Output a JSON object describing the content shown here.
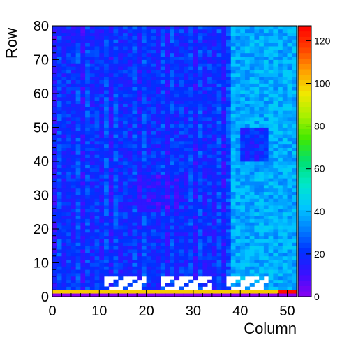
{
  "chart_data": {
    "type": "heatmap",
    "title": "",
    "xlabel": "Column",
    "ylabel": "Row",
    "xlim": [
      0,
      52
    ],
    "ylim": [
      0,
      80
    ],
    "x_ticks": [
      "0",
      "10",
      "20",
      "30",
      "40",
      "50"
    ],
    "y_ticks": [
      "0",
      "10",
      "20",
      "30",
      "40",
      "50",
      "60",
      "70",
      "80"
    ],
    "colorbar": {
      "range": [
        0,
        127
      ],
      "ticks": [
        "0",
        "20",
        "40",
        "60",
        "80",
        "100",
        "120"
      ],
      "palette": [
        "#8a00f0",
        "#3a10ff",
        "#0030ff",
        "#0080ff",
        "#00c8ff",
        "#00e8c8",
        "#00e070",
        "#40e800",
        "#a8f000",
        "#f0e800",
        "#ffa000",
        "#ff4000",
        "#ff0000"
      ]
    },
    "columns": 52,
    "rows": 80,
    "description_of_values": {
      "row_0": 0,
      "row_1_left": 100,
      "row_1_right_edge": 125,
      "columns_0_to_37_typical": 18,
      "columns_38_to_52_typical": 38,
      "dark_patch_center": [
        22,
        30
      ],
      "dark_patch_right": [
        42,
        45
      ]
    },
    "empty_blocks": [
      {
        "cols": [
          11,
          19
        ],
        "rows": [
          2,
          5
        ]
      },
      {
        "cols": [
          23,
          33
        ],
        "rows": [
          2,
          5
        ]
      },
      {
        "cols": [
          37,
          45
        ],
        "rows": [
          2,
          5
        ]
      }
    ]
  }
}
